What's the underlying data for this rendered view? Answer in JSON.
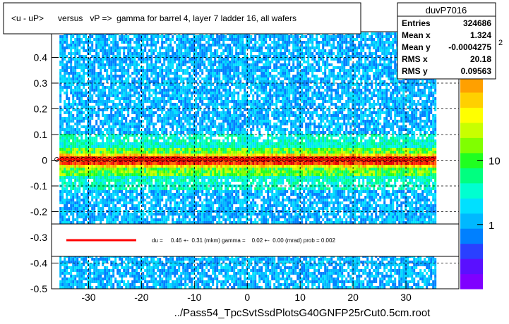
{
  "chart_data": {
    "type": "heatmap",
    "title": "<u - uP>      versus   vP =>  gamma for barrel 4, layer 7 ladder 16, all wafers",
    "xlabel": "../Pass54_TpcSvtSsdPlotsG40GNFP25rCut0.5cm.root",
    "ylabel": "",
    "xlim": [
      -37,
      40
    ],
    "ylim": [
      -0.5,
      0.5
    ],
    "x_ticks": [
      -30,
      -20,
      -10,
      0,
      10,
      20,
      30
    ],
    "x_tick_labels": [
      "-30",
      "-20",
      "-10",
      "0",
      "10",
      "20",
      "30"
    ],
    "y_ticks": [
      -0.5,
      -0.4,
      -0.3,
      -0.2,
      -0.1,
      0,
      0.1,
      0.2,
      0.3,
      0.4
    ],
    "y_tick_labels": [
      "-0.5",
      "-0.4",
      "-0.3",
      "-0.2",
      "-0.1",
      "0",
      "0.1",
      "0.2",
      "0.3",
      "0.4"
    ],
    "y_ticks_unlabeled": [
      0.5
    ],
    "filled_x_range": [
      -35.5,
      35.5
    ],
    "ridge_y": 0.003,
    "zscale": "log",
    "colorbar_ticks": [
      1,
      10
    ],
    "colorbar_tick_labels": [
      "1",
      "10"
    ],
    "colorbar_exponent_label": "2",
    "colorbar_palette": [
      "#7f00ff",
      "#5a10ff",
      "#2a40ff",
      "#0080ff",
      "#00b8ff",
      "#00e0ff",
      "#00ffd0",
      "#00ff80",
      "#20ff20",
      "#80ff00",
      "#c8ff00",
      "#ffff00",
      "#ffd000",
      "#ffa000",
      "#ff6000",
      "#ff2000",
      "#e00000"
    ],
    "stats": {
      "name": "duvP7016",
      "rows": [
        {
          "label": "Entries",
          "value": "324686"
        },
        {
          "label": "Mean x",
          "value": "1.324"
        },
        {
          "label": "Mean y",
          "value": "-0.0004275"
        },
        {
          "label": "RMS x",
          "value": "20.18"
        },
        {
          "label": "RMS y",
          "value": "0.09563"
        }
      ]
    },
    "fit_legend": "du =     0.46 +-  0.31 (mkm) gamma =    0.02 +-  0.00 (mrad) prob = 0.002",
    "fit_line_color": "#ff0000"
  }
}
